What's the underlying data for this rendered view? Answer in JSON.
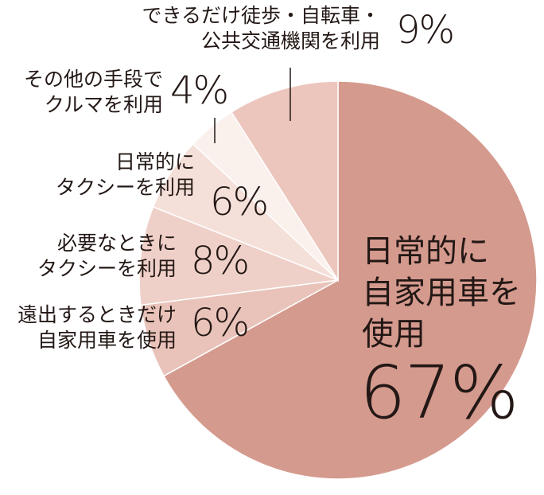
{
  "chart_data": {
    "type": "pie",
    "categories": [
      "日常的に\n自家用車を\n使用",
      "遠出するときだけ\n自家用車を使用",
      "必要なときに\nタクシーを利用",
      "日常的に\nタクシーを利用",
      "その他の手段で\nクルマを利用",
      "できるだけ徒歩・自転車・\n公共交通機関を利用"
    ],
    "values": [
      67,
      6,
      8,
      6,
      4,
      9
    ],
    "value_labels": [
      "67%",
      "6%",
      "8%",
      "6%",
      "4%",
      "9%"
    ],
    "colors": [
      "#d59a8e",
      "#e9c3b9",
      "#efd0c8",
      "#f4dfd9",
      "#faf0ec",
      "#ecc6bc"
    ]
  }
}
